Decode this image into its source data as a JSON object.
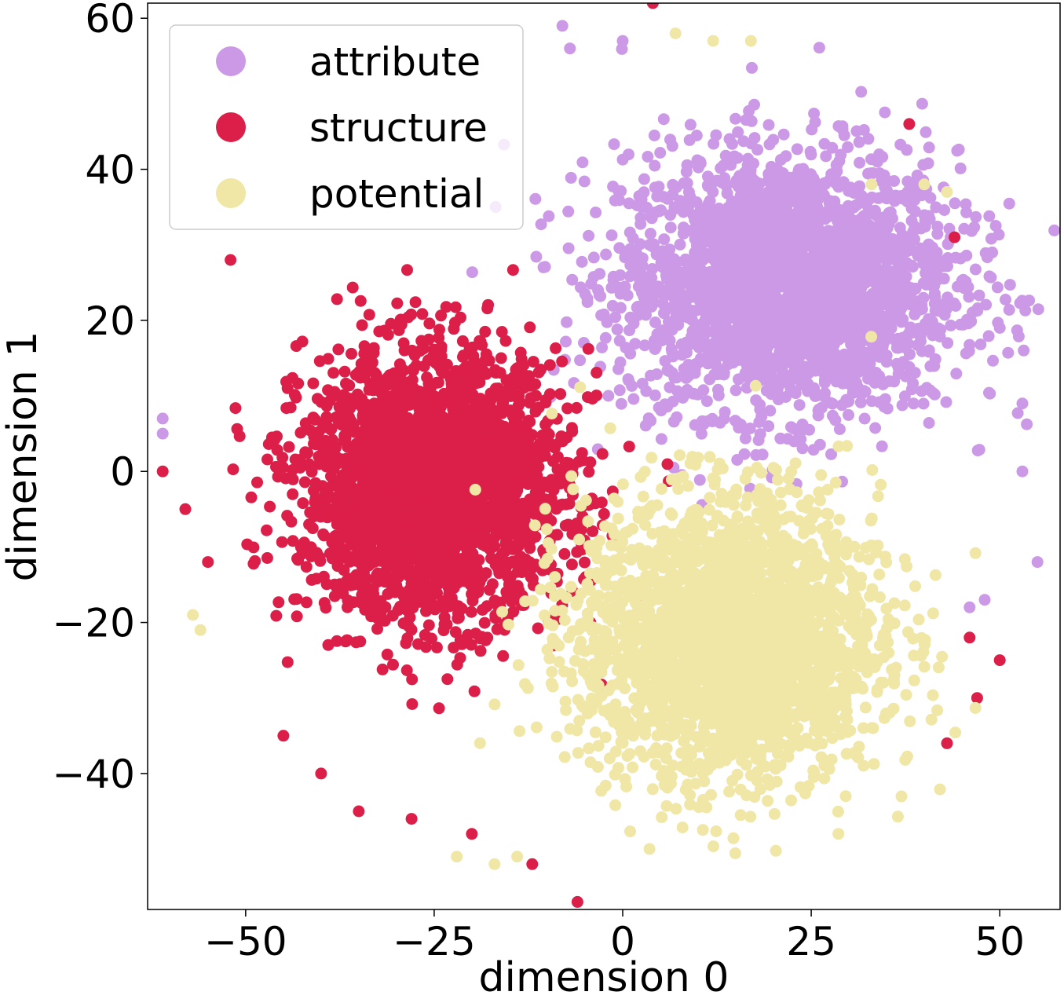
{
  "chart_data": {
    "type": "scatter",
    "title": "",
    "xlabel": "dimension 0",
    "ylabel": "dimension 1",
    "xlim": [
      -63,
      58
    ],
    "ylim": [
      -58,
      62
    ],
    "xticks": [
      -50,
      -25,
      0,
      25,
      50
    ],
    "yticks": [
      -40,
      -20,
      0,
      20,
      40,
      60
    ],
    "xtick_labels": [
      "−50",
      "−25",
      "0",
      "25",
      "50"
    ],
    "ytick_labels": [
      "−40",
      "−20",
      "0",
      "20",
      "40",
      "60"
    ],
    "legend_position": "top-left",
    "grid": false,
    "series": [
      {
        "name": "attribute",
        "color": "#cc99e6",
        "cluster": {
          "center": [
            22,
            25
          ],
          "spread": [
            18,
            14
          ],
          "approx_points": 2600
        },
        "outliers": [
          [
            -61,
            7
          ],
          [
            -61,
            5
          ],
          [
            -8,
            59
          ],
          [
            -7,
            56
          ],
          [
            0,
            57
          ],
          [
            35,
            33
          ],
          [
            49,
            29
          ],
          [
            50,
            19
          ],
          [
            53,
            9
          ],
          [
            53,
            0
          ],
          [
            55,
            -12
          ],
          [
            46,
            -18
          ],
          [
            48,
            -17
          ]
        ]
      },
      {
        "name": "structure",
        "color": "#dc1f48",
        "cluster": {
          "center": [
            -25,
            -2
          ],
          "spread": [
            14,
            14
          ],
          "approx_points": 2600
        },
        "outliers": [
          [
            -55,
            -12
          ],
          [
            -58,
            -5
          ],
          [
            -61,
            0
          ],
          [
            -52,
            28
          ],
          [
            -45,
            -35
          ],
          [
            -40,
            -40
          ],
          [
            -35,
            -45
          ],
          [
            -28,
            -46
          ],
          [
            -20,
            -48
          ],
          [
            -12,
            -52
          ],
          [
            -6,
            -57
          ],
          [
            4,
            62
          ],
          [
            38,
            46
          ],
          [
            44,
            31
          ],
          [
            46,
            -22
          ],
          [
            50,
            -25
          ],
          [
            43,
            -36
          ],
          [
            47,
            -30
          ]
        ]
      },
      {
        "name": "potential",
        "color": "#f0e6a6",
        "cluster": {
          "center": [
            14,
            -22
          ],
          "spread": [
            16,
            15
          ],
          "approx_points": 2600
        },
        "outliers": [
          [
            -57,
            -19
          ],
          [
            -56,
            -21
          ],
          [
            7,
            58
          ],
          [
            12,
            57
          ],
          [
            17,
            57
          ],
          [
            33,
            38
          ],
          [
            40,
            38
          ],
          [
            43,
            37
          ],
          [
            -22,
            -51
          ],
          [
            -17,
            -52
          ],
          [
            -14,
            -51
          ]
        ]
      }
    ]
  }
}
